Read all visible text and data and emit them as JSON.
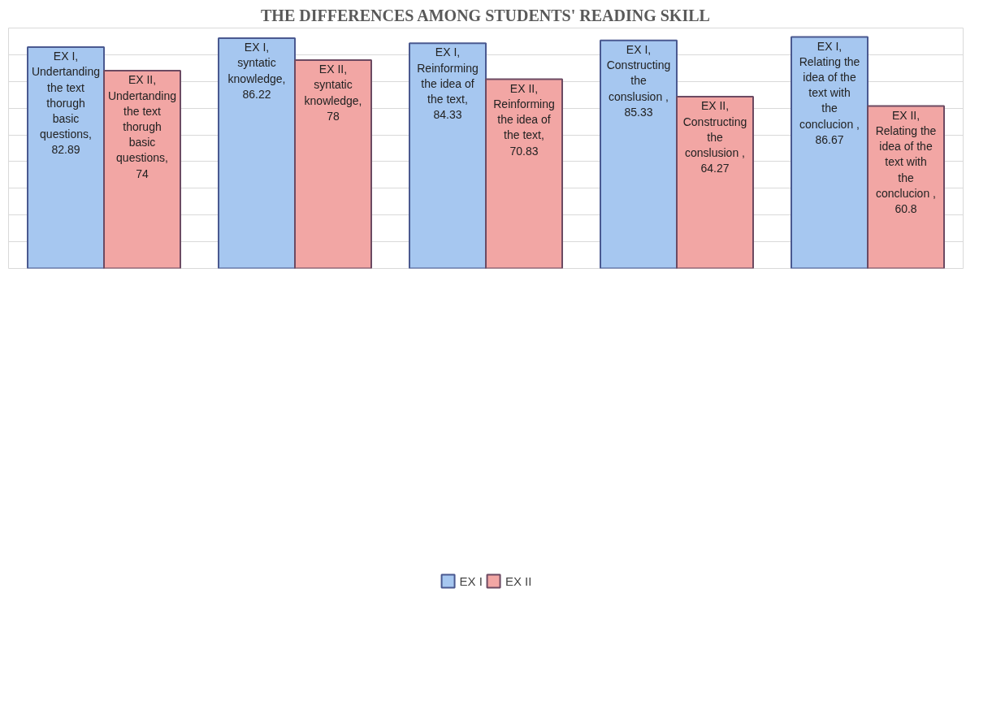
{
  "chart_data": {
    "type": "bar",
    "title": "THE DIFFERENCES AMONG STUDENTS' READING SKILL",
    "categories": [
      null,
      null,
      null,
      null,
      null
    ],
    "series": [
      {
        "name": "EX I",
        "color": "#a6c7f0",
        "values": [
          82.89,
          86.22,
          84.33,
          85.33,
          86.67
        ],
        "value_labels": [
          "EX I, Undertanding the text thorugh basic questions, 82.89",
          "EX I, syntatic knowledge, 86.22",
          "EX I, Reinforming the idea of the text, 84.33",
          "EX I, Constructing the conslusion , 85.33",
          "EX I, Relating the idea of the text with the conclucion , 86.67"
        ]
      },
      {
        "name": "EX II",
        "color": "#f2a6a4",
        "values": [
          74,
          78,
          70.83,
          64.27,
          60.8
        ],
        "value_labels": [
          "EX II, Undertanding the text thorugh basic questions, 74",
          "EX II, syntatic knowledge, 78",
          "EX II, Reinforming the idea of the text, 70.83",
          "EX II, Constructing the conslusion , 64.27",
          "EX II, Relating the idea of the text with the conclucion , 60.8"
        ]
      }
    ],
    "ylim": [
      0,
      90
    ],
    "yticks": [
      {
        "value": 0,
        "label": null
      },
      {
        "value": 10,
        "label": null
      },
      {
        "value": 20,
        "label": null
      },
      {
        "value": 30,
        "label": null
      },
      {
        "value": 40,
        "label": null
      },
      {
        "value": 50,
        "label": null
      },
      {
        "value": 60,
        "label": null
      },
      {
        "value": 70,
        "label": null
      },
      {
        "value": 80,
        "label": null
      },
      {
        "value": 90,
        "label": null
      }
    ],
    "grid": "y",
    "legend": "bottom",
    "tick_labels": false
  }
}
